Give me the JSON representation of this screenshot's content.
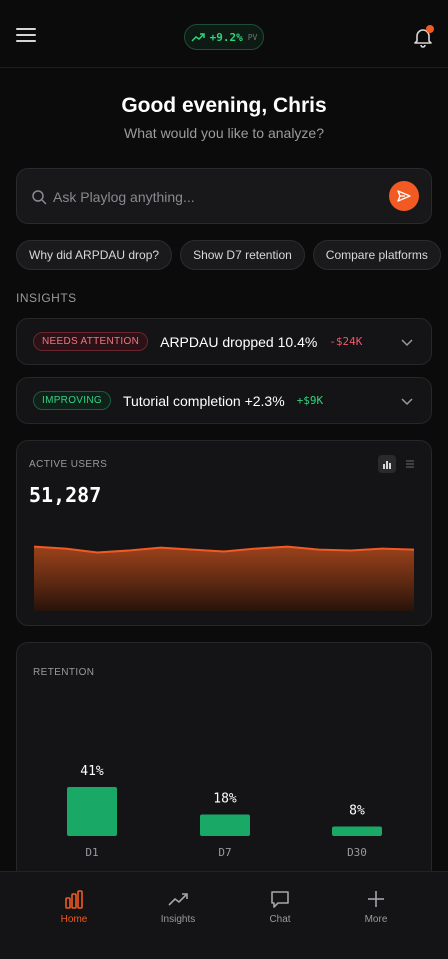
{
  "header": {
    "pv_value": "+9.2%",
    "pv_label": "PV"
  },
  "greeting": {
    "title": "Good evening, Chris",
    "subtitle": "What would you like to analyze?"
  },
  "search": {
    "placeholder": "Ask Playlog anything..."
  },
  "chips": [
    "Why did ARPDAU drop?",
    "Show D7 retention",
    "Compare platforms"
  ],
  "insights_label": "INSIGHTS",
  "insights": [
    {
      "badge": "NEEDS ATTENTION",
      "title": "ARPDAU dropped 10.4%",
      "impact": "-$24K",
      "status": "negative"
    },
    {
      "badge": "IMPROVING",
      "title": "Tutorial completion +2.3%",
      "impact": "+$9K",
      "status": "positive"
    }
  ],
  "active_users": {
    "label": "ACTIVE USERS",
    "value": "51,287"
  },
  "retention": {
    "label": "RETENTION"
  },
  "colors": {
    "accent": "#f15a22",
    "positive": "#2ed47a",
    "negative": "#f0566a",
    "bar": "#1aa866"
  },
  "chart_data": [
    {
      "type": "area",
      "title": "ACTIVE USERS",
      "x": [
        0,
        1,
        2,
        3,
        4,
        5,
        6,
        7,
        8,
        9,
        10,
        11,
        12
      ],
      "y": [
        51.6,
        51.4,
        51.0,
        51.2,
        51.5,
        51.3,
        51.1,
        51.4,
        51.6,
        51.3,
        51.2,
        51.4,
        51.3
      ],
      "ylim": [
        45,
        53
      ],
      "grid": false
    },
    {
      "type": "bar",
      "title": "RETENTION",
      "categories": [
        "D1",
        "D7",
        "D30"
      ],
      "values": [
        41,
        18,
        8
      ],
      "labels": [
        "41%",
        "18%",
        "8%"
      ],
      "ylim": [
        0,
        41
      ]
    }
  ],
  "nav": [
    {
      "label": "Home",
      "icon": "bar-chart-icon",
      "active": true
    },
    {
      "label": "Insights",
      "icon": "trend-icon",
      "active": false
    },
    {
      "label": "Chat",
      "icon": "chat-icon",
      "active": false
    },
    {
      "label": "More",
      "icon": "plus-icon",
      "active": false
    }
  ]
}
